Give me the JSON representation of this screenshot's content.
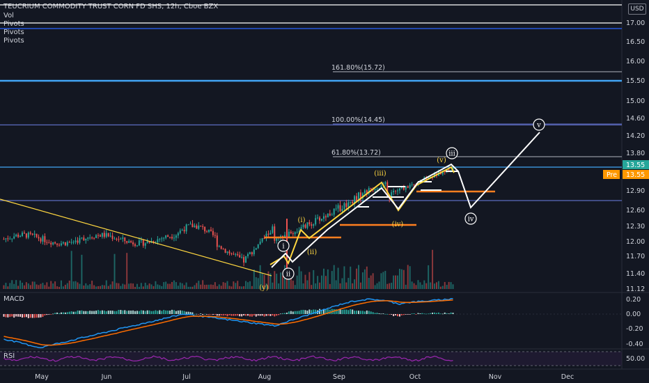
{
  "header": {
    "title": "TEUCRIUM COMMODITY TRUST CORN FD SHS, 12h, Cboe BZX",
    "indicators": [
      "Vol",
      "Pivots",
      "Pivots",
      "Pivots"
    ],
    "currency": "USD"
  },
  "price_tags": {
    "last": "13.55",
    "pre_label": "Pre",
    "pre_value": "13.55"
  },
  "panels": {
    "macd_label": "MACD",
    "rsi_label": "RSI"
  },
  "chart_data": {
    "type": "candlestick",
    "y_axis": {
      "ticks": [
        "17.00",
        "16.50",
        "16.00",
        "15.50",
        "15.00",
        "14.60",
        "14.20",
        "13.80",
        "13.55",
        "12.90",
        "12.60",
        "12.30",
        "12.00",
        "11.70",
        "11.40",
        "11.12"
      ],
      "tick_values": [
        17.0,
        16.5,
        16.0,
        15.5,
        15.0,
        14.6,
        14.2,
        13.8,
        13.55,
        12.9,
        12.6,
        12.3,
        12.0,
        11.7,
        11.4,
        11.12
      ]
    },
    "macd_axis": {
      "ticks": [
        "0.20",
        "0.00",
        "-0.20",
        "-0.40"
      ],
      "tick_values": [
        0.2,
        0.0,
        -0.2,
        -0.4
      ]
    },
    "rsi_axis": {
      "ticks": [
        "50.00"
      ],
      "tick_values": [
        50
      ]
    },
    "x_axis": {
      "labels": [
        "May",
        "Jun",
        "Jul",
        "Aug",
        "Sep",
        "Oct",
        "Nov",
        "Dec"
      ]
    },
    "fib_levels": [
      {
        "label": "161.80%(15.72)",
        "value": 15.72
      },
      {
        "label": "100.00%(14.45)",
        "value": 14.45
      },
      {
        "label": "61.80%(13.72)",
        "value": 13.72
      }
    ],
    "horizontal_lines": [
      {
        "value": 17.25,
        "color": "#ffffff"
      },
      {
        "value": 17.0,
        "color": "#ffffff"
      },
      {
        "value": 16.85,
        "color": "#2962ff"
      },
      {
        "value": 15.5,
        "color": "#42a5f5"
      },
      {
        "value": 14.45,
        "color": "#5c6bc0"
      },
      {
        "value": 13.55,
        "color": "#42a5f5"
      },
      {
        "value": 12.75,
        "color": "#5c6bc0"
      }
    ],
    "wave_labels": [
      {
        "text": "i",
        "style": "white-circle"
      },
      {
        "text": "ii",
        "style": "white-circle"
      },
      {
        "text": "iii",
        "style": "white-circle"
      },
      {
        "text": "iv",
        "style": "white-circle"
      },
      {
        "text": "v",
        "style": "white-circle"
      },
      {
        "text": "(i)",
        "style": "yellow"
      },
      {
        "text": "(ii)",
        "style": "yellow"
      },
      {
        "text": "(iii)",
        "style": "yellow"
      },
      {
        "text": "(iv)",
        "style": "yellow"
      },
      {
        "text": "(v)",
        "style": "yellow"
      },
      {
        "text": "(y)",
        "style": "yellow"
      }
    ]
  },
  "colors": {
    "background": "#131722",
    "up": "#26a69a",
    "down": "#ef5350",
    "projection": "#ffffff",
    "wave": "#ffd740",
    "orange": "#ff7f1f",
    "macd": "#2196f3",
    "signal": "#ff6d00",
    "rsi": "#9c27b0"
  }
}
